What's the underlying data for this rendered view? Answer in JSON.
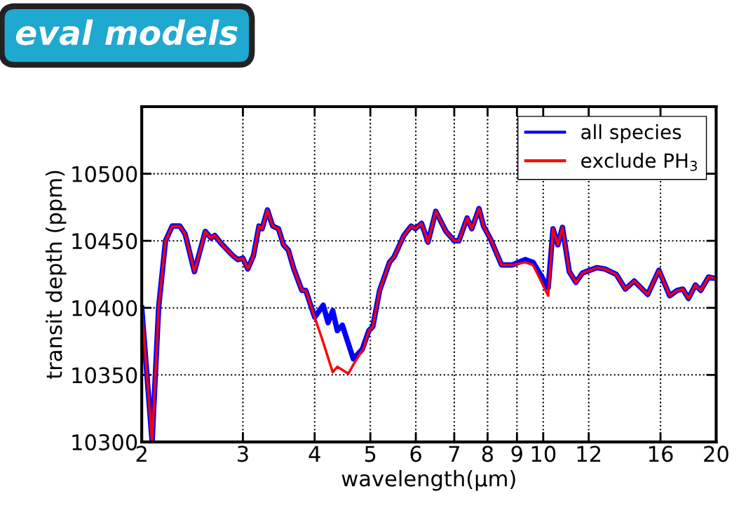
{
  "chart_data": {
    "type": "line",
    "annotations": [
      "eval models"
    ],
    "xlabel": "wavelength(μm)",
    "ylabel": "transit depth (ppm)",
    "log": "x",
    "xlim": [
      2,
      20
    ],
    "xticks": [
      2,
      3,
      4,
      5,
      6,
      7,
      8,
      9,
      10,
      12,
      16,
      20
    ],
    "ylim": [
      10300,
      10550
    ],
    "yticks": [
      10300,
      10350,
      10400,
      10450,
      10500
    ],
    "grid": true,
    "legend": "top right",
    "line_style": "solid",
    "marker": "none",
    "series": [
      {
        "name": "all species",
        "color": "#0000ff",
        "x": [
          2.0,
          2.085,
          2.14,
          2.2,
          2.26,
          2.33,
          2.38,
          2.47,
          2.58,
          2.64,
          2.68,
          2.75,
          2.88,
          2.94,
          3.0,
          3.06,
          3.13,
          3.2,
          3.24,
          3.31,
          3.38,
          3.46,
          3.53,
          3.6,
          3.68,
          3.8,
          3.86,
          4.0,
          4.14,
          4.22,
          4.3,
          4.38,
          4.47,
          4.67,
          4.84,
          4.97,
          5.05,
          5.19,
          5.4,
          5.5,
          5.72,
          5.89,
          5.99,
          6.14,
          6.3,
          6.5,
          6.77,
          7.0,
          7.13,
          7.37,
          7.51,
          7.73,
          7.87,
          8.1,
          8.46,
          8.84,
          9.3,
          9.6,
          10.2,
          10.4,
          10.6,
          10.8,
          11.1,
          11.4,
          11.7,
          12.4,
          12.8,
          13.4,
          13.9,
          14.4,
          15.2,
          15.9,
          16.6,
          17.1,
          17.5,
          17.9,
          18.4,
          18.8,
          19.4,
          19.9
        ],
        "values": [
          10400,
          10300,
          10400,
          10450,
          10461,
          10461,
          10455,
          10427,
          10457,
          10452,
          10454,
          10448,
          10439,
          10436,
          10437,
          10429,
          10439,
          10461,
          10459,
          10473,
          10461,
          10459,
          10447,
          10443,
          10429,
          10413,
          10413,
          10393,
          10402,
          10389,
          10398,
          10383,
          10387,
          10362,
          10369,
          10383,
          10386,
          10413,
          10434,
          10438,
          10454,
          10461,
          10459,
          10463,
          10449,
          10472,
          10457,
          10450,
          10450,
          10467,
          10459,
          10474,
          10461,
          10451,
          10432,
          10432,
          10436,
          10434,
          10415,
          10459,
          10447,
          10460,
          10427,
          10419,
          10426,
          10430,
          10429,
          10425,
          10414,
          10420,
          10410,
          10428,
          10409,
          10413,
          10414,
          10407,
          10417,
          10413,
          10423,
          10422
        ]
      },
      {
        "name": "exclude PH$_{3}$",
        "color": "#ff0000",
        "x": [
          2.0,
          2.085,
          2.14,
          2.2,
          2.26,
          2.33,
          2.38,
          2.47,
          2.58,
          2.64,
          2.68,
          2.75,
          2.88,
          2.94,
          3.0,
          3.06,
          3.13,
          3.2,
          3.24,
          3.31,
          3.38,
          3.46,
          3.53,
          3.6,
          3.68,
          3.8,
          3.86,
          4.0,
          4.12,
          4.3,
          4.38,
          4.58,
          4.69,
          4.87,
          4.97,
          5.05,
          5.19,
          5.4,
          5.5,
          5.72,
          5.89,
          5.99,
          6.14,
          6.3,
          6.5,
          6.77,
          7.0,
          7.13,
          7.37,
          7.51,
          7.73,
          7.87,
          8.1,
          8.46,
          8.84,
          9.3,
          9.6,
          10.2,
          10.4,
          10.6,
          10.8,
          11.1,
          11.4,
          11.7,
          12.4,
          12.8,
          13.4,
          13.9,
          14.4,
          15.2,
          15.9,
          16.6,
          17.1,
          17.5,
          17.9,
          18.4,
          18.8,
          19.4,
          19.9
        ],
        "values": [
          10400,
          10300,
          10400,
          10450,
          10461,
          10461,
          10455,
          10427,
          10457,
          10452,
          10454,
          10448,
          10439,
          10436,
          10437,
          10429,
          10439,
          10461,
          10459,
          10473,
          10461,
          10459,
          10447,
          10443,
          10429,
          10413,
          10413,
          10393,
          10377,
          10352,
          10356,
          10351,
          10359,
          10370,
          10383,
          10386,
          10413,
          10434,
          10438,
          10454,
          10461,
          10459,
          10463,
          10449,
          10472,
          10457,
          10450,
          10450,
          10467,
          10459,
          10474,
          10461,
          10451,
          10432,
          10432,
          10434,
          10432,
          10409,
          10459,
          10447,
          10460,
          10427,
          10419,
          10426,
          10430,
          10429,
          10425,
          10414,
          10420,
          10410,
          10428,
          10409,
          10413,
          10414,
          10407,
          10417,
          10413,
          10423,
          10422
        ]
      }
    ]
  }
}
